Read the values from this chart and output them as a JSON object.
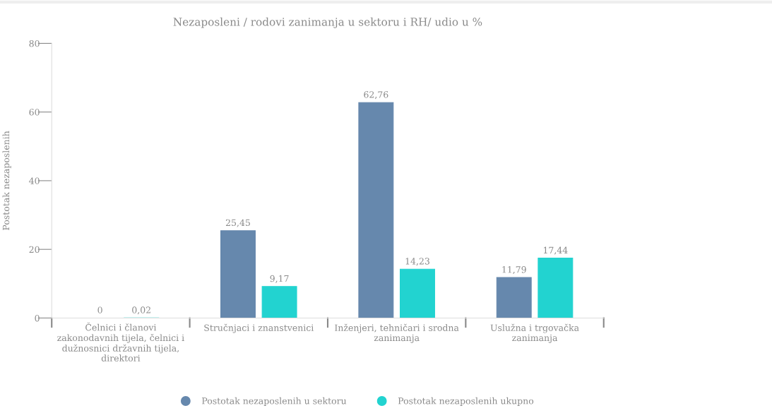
{
  "chart_data": {
    "type": "bar",
    "title": "Nezaposleni / rodovi zanimanja u sektoru i RH/ udio u %",
    "ylabel": "Postotak nezaposlenih",
    "categories": [
      "Čelnici i članovi\nzakonodavnih tijela, čelnici i\ndužnosnici državnih tijela,\ndirektori",
      "Stručnjaci i znanstvenici",
      "Inženjeri, tehničari i srodna\nzanimanja",
      "Uslužna i trgovačka\nzanimanja"
    ],
    "series": [
      {
        "name": "Postotak nezaposlenih u sektoru",
        "color": "#6688ad",
        "values": [
          0,
          25.45,
          62.76,
          11.79
        ],
        "value_labels": [
          "0",
          "25,45",
          "62,76",
          "11,79"
        ]
      },
      {
        "name": "Postotak nezaposlenih ukupno",
        "color": "#22d3d0",
        "values": [
          0.02,
          9.17,
          14.23,
          17.44
        ],
        "value_labels": [
          "0,02",
          "9,17",
          "14,23",
          "17,44"
        ]
      }
    ],
    "ylim": [
      0,
      80
    ],
    "yticks": [
      0,
      20,
      40,
      60,
      80
    ],
    "grid": false,
    "legend": "bottom"
  }
}
